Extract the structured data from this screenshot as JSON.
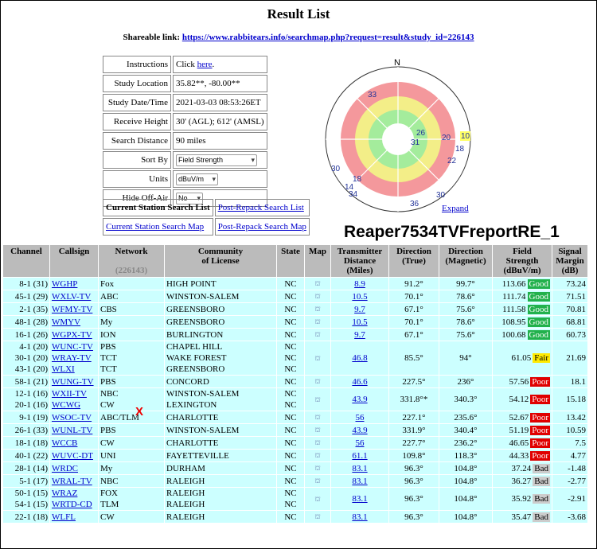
{
  "title": "Result List",
  "share": {
    "label": "Shareable link:",
    "url": "https://www.rabbitears.info/searchmap.php?request=result&study_id=226143"
  },
  "info": {
    "instructions_key": "Instructions",
    "instructions_pre": "Click ",
    "instructions_link": "here",
    "instructions_post": ".",
    "location_key": "Study Location",
    "location_val": "35.82**, -80.00**",
    "date_key": "Study Date/Time",
    "date_val": "2021-03-03 08:53:26ET",
    "height_key": "Receive Height",
    "height_val": "30' (AGL); 612' (AMSL)",
    "distance_key": "Search Distance",
    "distance_val": "90 miles",
    "sort_key": "Sort By",
    "sort_val": "Field Strength",
    "units_key": "Units",
    "units_val": "dBuV/m",
    "hide_key": "Hide Off-Air",
    "hide_val": "No"
  },
  "links": {
    "current_list": "Current Station Search List",
    "post_list": "Post-Repack Search List",
    "current_map": "Current Station Search Map",
    "post_map": "Post-Repack Search Map"
  },
  "radar": {
    "north": "N",
    "expand": "Expand",
    "title": "Reaper7534TVFreportRE_1",
    "labels": [
      "33",
      "26",
      "31",
      "20",
      "10",
      "18",
      "22",
      "30",
      "18",
      "14",
      "34",
      "36",
      "30"
    ]
  },
  "table": {
    "headers": {
      "channel": "Channel",
      "callsign": "Callsign",
      "network": "Network",
      "network_sub": "(226143)",
      "community1": "Community",
      "community2": "of License",
      "state": "State",
      "map": "Map",
      "dist1": "Transmitter",
      "dist2": "Distance",
      "dist3": "(Miles)",
      "dir_true1": "Direction",
      "dir_true2": "(True)",
      "dir_mag1": "Direction",
      "dir_mag2": "(Magnetic)",
      "fs1": "Field",
      "fs2": "Strength",
      "fs3": "(dBuV/m)",
      "sm1": "Signal",
      "sm2": "Margin",
      "sm3": "(dB)"
    },
    "rows": [
      {
        "ch": [
          "8-1 (31)"
        ],
        "cs": [
          "WGHP"
        ],
        "net": [
          "Fox"
        ],
        "com": [
          "HIGH POINT"
        ],
        "st": [
          "NC"
        ],
        "dist": "8.9",
        "dt": "91.2°",
        "dm": "99.7°",
        "fs": "113.66",
        "rating": "Good",
        "sm": "73.24"
      },
      {
        "ch": [
          "45-1 (29)"
        ],
        "cs": [
          "WXLV-TV"
        ],
        "net": [
          "ABC"
        ],
        "com": [
          "WINSTON-SALEM"
        ],
        "st": [
          "NC"
        ],
        "dist": "10.5",
        "dt": "70.1°",
        "dm": "78.6°",
        "fs": "111.74",
        "rating": "Good",
        "sm": "71.51"
      },
      {
        "ch": [
          "2-1 (35)"
        ],
        "cs": [
          "WFMY-TV"
        ],
        "net": [
          "CBS"
        ],
        "com": [
          "GREENSBORO"
        ],
        "st": [
          "NC"
        ],
        "dist": "9.7",
        "dt": "67.1°",
        "dm": "75.6°",
        "fs": "111.58",
        "rating": "Good",
        "sm": "70.81"
      },
      {
        "ch": [
          "48-1 (28)"
        ],
        "cs": [
          "WMYV"
        ],
        "net": [
          "My"
        ],
        "com": [
          "GREENSBORO"
        ],
        "st": [
          "NC"
        ],
        "dist": "10.5",
        "dt": "70.1°",
        "dm": "78.6°",
        "fs": "108.95",
        "rating": "Good",
        "sm": "68.81"
      },
      {
        "ch": [
          "16-1 (26)"
        ],
        "cs": [
          "WGPX-TV"
        ],
        "net": [
          "ION"
        ],
        "com": [
          "BURLINGTON"
        ],
        "st": [
          "NC"
        ],
        "dist": "9.7",
        "dt": "67.1°",
        "dm": "75.6°",
        "fs": "100.68",
        "rating": "Good",
        "sm": "60.73"
      },
      {
        "ch": [
          "4-1 (20)",
          "30-1 (20)",
          "43-1 (20)"
        ],
        "cs": [
          "WUNC-TV",
          "WRAY-TV",
          "WLXI"
        ],
        "net": [
          "PBS",
          "TCT",
          "TCT"
        ],
        "com": [
          "CHAPEL HILL",
          "WAKE FOREST",
          "GREENSBORO"
        ],
        "st": [
          "NC",
          "NC",
          "NC"
        ],
        "dist": "46.8",
        "dt": "85.5°",
        "dm": "94°",
        "fs": "61.05",
        "rating": "Fair",
        "sm": "21.69"
      },
      {
        "ch": [
          "58-1 (21)"
        ],
        "cs": [
          "WUNG-TV"
        ],
        "net": [
          "PBS"
        ],
        "com": [
          "CONCORD"
        ],
        "st": [
          "NC"
        ],
        "dist": "46.6",
        "dt": "227.5°",
        "dm": "236°",
        "fs": "57.56",
        "rating": "Poor",
        "sm": "18.1"
      },
      {
        "ch": [
          "12-1 (16)",
          "20-1 (16)"
        ],
        "cs": [
          "WXII-TV",
          "WCWG"
        ],
        "net": [
          "NBC",
          "CW"
        ],
        "com": [
          "WINSTON-SALEM",
          "LEXINGTON"
        ],
        "st": [
          "NC",
          "NC"
        ],
        "dist": "43.9",
        "dt": "331.8°*",
        "dm": "340.3°",
        "fs": "54.12",
        "rating": "Poor",
        "sm": "15.18"
      },
      {
        "ch": [
          "9-1 (19)"
        ],
        "cs": [
          "WSOC-TV"
        ],
        "net": [
          "ABC/TLM"
        ],
        "com": [
          "CHARLOTTE"
        ],
        "st": [
          "NC"
        ],
        "dist": "56",
        "dt": "227.1°",
        "dm": "235.6°",
        "fs": "52.67",
        "rating": "Poor",
        "sm": "13.42"
      },
      {
        "ch": [
          "26-1 (33)"
        ],
        "cs": [
          "WUNL-TV"
        ],
        "net": [
          "PBS"
        ],
        "com": [
          "WINSTON-SALEM"
        ],
        "st": [
          "NC"
        ],
        "dist": "43.9",
        "dt": "331.9°",
        "dm": "340.4°",
        "fs": "51.19",
        "rating": "Poor",
        "sm": "10.59"
      },
      {
        "ch": [
          "18-1 (18)"
        ],
        "cs": [
          "WCCB"
        ],
        "net": [
          "CW"
        ],
        "com": [
          "CHARLOTTE"
        ],
        "st": [
          "NC"
        ],
        "dist": "56",
        "dt": "227.7°",
        "dm": "236.2°",
        "fs": "46.65",
        "rating": "Poor",
        "sm": "7.5"
      },
      {
        "ch": [
          "40-1 (22)"
        ],
        "cs": [
          "WUVC-DT"
        ],
        "net": [
          "UNI"
        ],
        "com": [
          "FAYETTEVILLE"
        ],
        "st": [
          "NC"
        ],
        "dist": "61.1",
        "dt": "109.8°",
        "dm": "118.3°",
        "fs": "44.33",
        "rating": "Poor",
        "sm": "4.77"
      },
      {
        "ch": [
          "28-1 (14)"
        ],
        "cs": [
          "WRDC"
        ],
        "net": [
          "My"
        ],
        "com": [
          "DURHAM"
        ],
        "st": [
          "NC"
        ],
        "dist": "83.1",
        "dt": "96.3°",
        "dm": "104.8°",
        "fs": "37.24",
        "rating": "Bad",
        "sm": "-1.48"
      },
      {
        "ch": [
          "5-1 (17)"
        ],
        "cs": [
          "WRAL-TV"
        ],
        "net": [
          "NBC"
        ],
        "com": [
          "RALEIGH"
        ],
        "st": [
          "NC"
        ],
        "dist": "83.1",
        "dt": "96.3°",
        "dm": "104.8°",
        "fs": "36.27",
        "rating": "Bad",
        "sm": "-2.77"
      },
      {
        "ch": [
          "50-1 (15)",
          "54-1 (15)"
        ],
        "cs": [
          "WRAZ",
          "WRTD-CD"
        ],
        "net": [
          "FOX",
          "TLM"
        ],
        "com": [
          "RALEIGH",
          "RALEIGH"
        ],
        "st": [
          "NC",
          "NC"
        ],
        "dist": "83.1",
        "dt": "96.3°",
        "dm": "104.8°",
        "fs": "35.92",
        "rating": "Bad",
        "sm": "-2.91"
      },
      {
        "ch": [
          "22-1 (18)"
        ],
        "cs": [
          "WLFL"
        ],
        "net": [
          "CW"
        ],
        "com": [
          "RALEIGH"
        ],
        "st": [
          "NC"
        ],
        "dist": "83.1",
        "dt": "96.3°",
        "dm": "104.8°",
        "fs": "35.47",
        "rating": "Bad",
        "sm": "-3.68"
      }
    ],
    "x_mark": "X"
  },
  "colors": {
    "good": "#22b14c",
    "fair": "#ffea00",
    "poor": "#e00000",
    "bad": "#cccccc",
    "row_bg": "#ccffff",
    "header_bg": "#bbbbbb",
    "link": "#0000cc"
  }
}
